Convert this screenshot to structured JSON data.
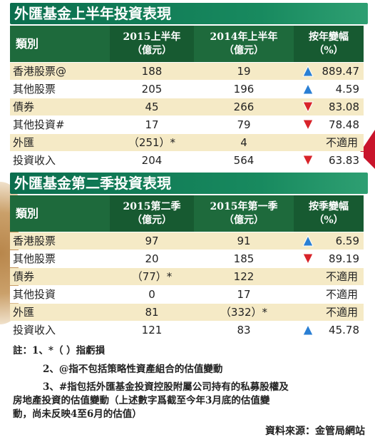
{
  "table1": {
    "title": "外匯基金上半年投資表現",
    "headers": {
      "col1": "類別",
      "col2_line1": "2015上半年",
      "col2_line2": "（億元）",
      "col3_line1": "2014年上半年",
      "col3_line2": "（億元）",
      "col4_line1": "按年變幅",
      "col4_line2": "（%）"
    },
    "rows": [
      {
        "name": "香港股票@",
        "v1": "188",
        "v2": "19",
        "change": "889.47",
        "trend": "up"
      },
      {
        "name": "其他股票",
        "v1": "205",
        "v2": "196",
        "change": "4.59",
        "trend": "up"
      },
      {
        "name": "債券",
        "v1": "45",
        "v2": "266",
        "change": "83.08",
        "trend": "down"
      },
      {
        "name": "其他投資#",
        "v1": "17",
        "v2": "79",
        "change": "78.48",
        "trend": "down"
      },
      {
        "name": "外匯",
        "v1": "（251）*",
        "v2": "4",
        "change": "不適用",
        "trend": "none"
      },
      {
        "name": "投資收入",
        "v1": "204",
        "v2": "564",
        "change": "63.83",
        "trend": "down"
      }
    ]
  },
  "table2": {
    "title": "外匯基金第二季投資表現",
    "headers": {
      "col1": "類別",
      "col2_line1": "2015第二季",
      "col2_line2": "（億元）",
      "col3_line1": "2015年第一季",
      "col3_line2": "（億元）",
      "col4_line1": "按季變幅",
      "col4_line2": "（%）"
    },
    "rows": [
      {
        "name": "香港股票",
        "v1": "97",
        "v2": "91",
        "change": "6.59",
        "trend": "up"
      },
      {
        "name": "其他股票",
        "v1": "20",
        "v2": "185",
        "change": "89.19",
        "trend": "down"
      },
      {
        "name": "債券",
        "v1": "（77）*",
        "v2": "122",
        "change": "不適用",
        "trend": "none"
      },
      {
        "name": "其他投資",
        "v1": "0",
        "v2": "17",
        "change": "不適用",
        "trend": "none"
      },
      {
        "name": "外匯",
        "v1": "81",
        "v2": "（332）*",
        "change": "不適用",
        "trend": "none"
      },
      {
        "name": "投資收入",
        "v1": "121",
        "v2": "83",
        "change": "45.78",
        "trend": "up"
      }
    ]
  },
  "notes": {
    "n1": "註：1、*（ ）指虧損",
    "n2": "2、@指不包括策略性資產組合的估值變動",
    "n3_line1": "3、#指包括外匯基金投資控股附屬公司持有的私募股權及",
    "n3_line2": "房地產投資的估值變動（上述數字爲截至今年3月底的估值變",
    "n3_line3": "動，尚未反映4至6月的估值）"
  },
  "source": "資料來源：金管局網站",
  "colors": {
    "header_green": "#1e6a3c",
    "title_green": "#0b6e4e",
    "row_tint": "#f5eac6",
    "up_blue": "#2a7fd4",
    "down_red": "#d8232a"
  }
}
